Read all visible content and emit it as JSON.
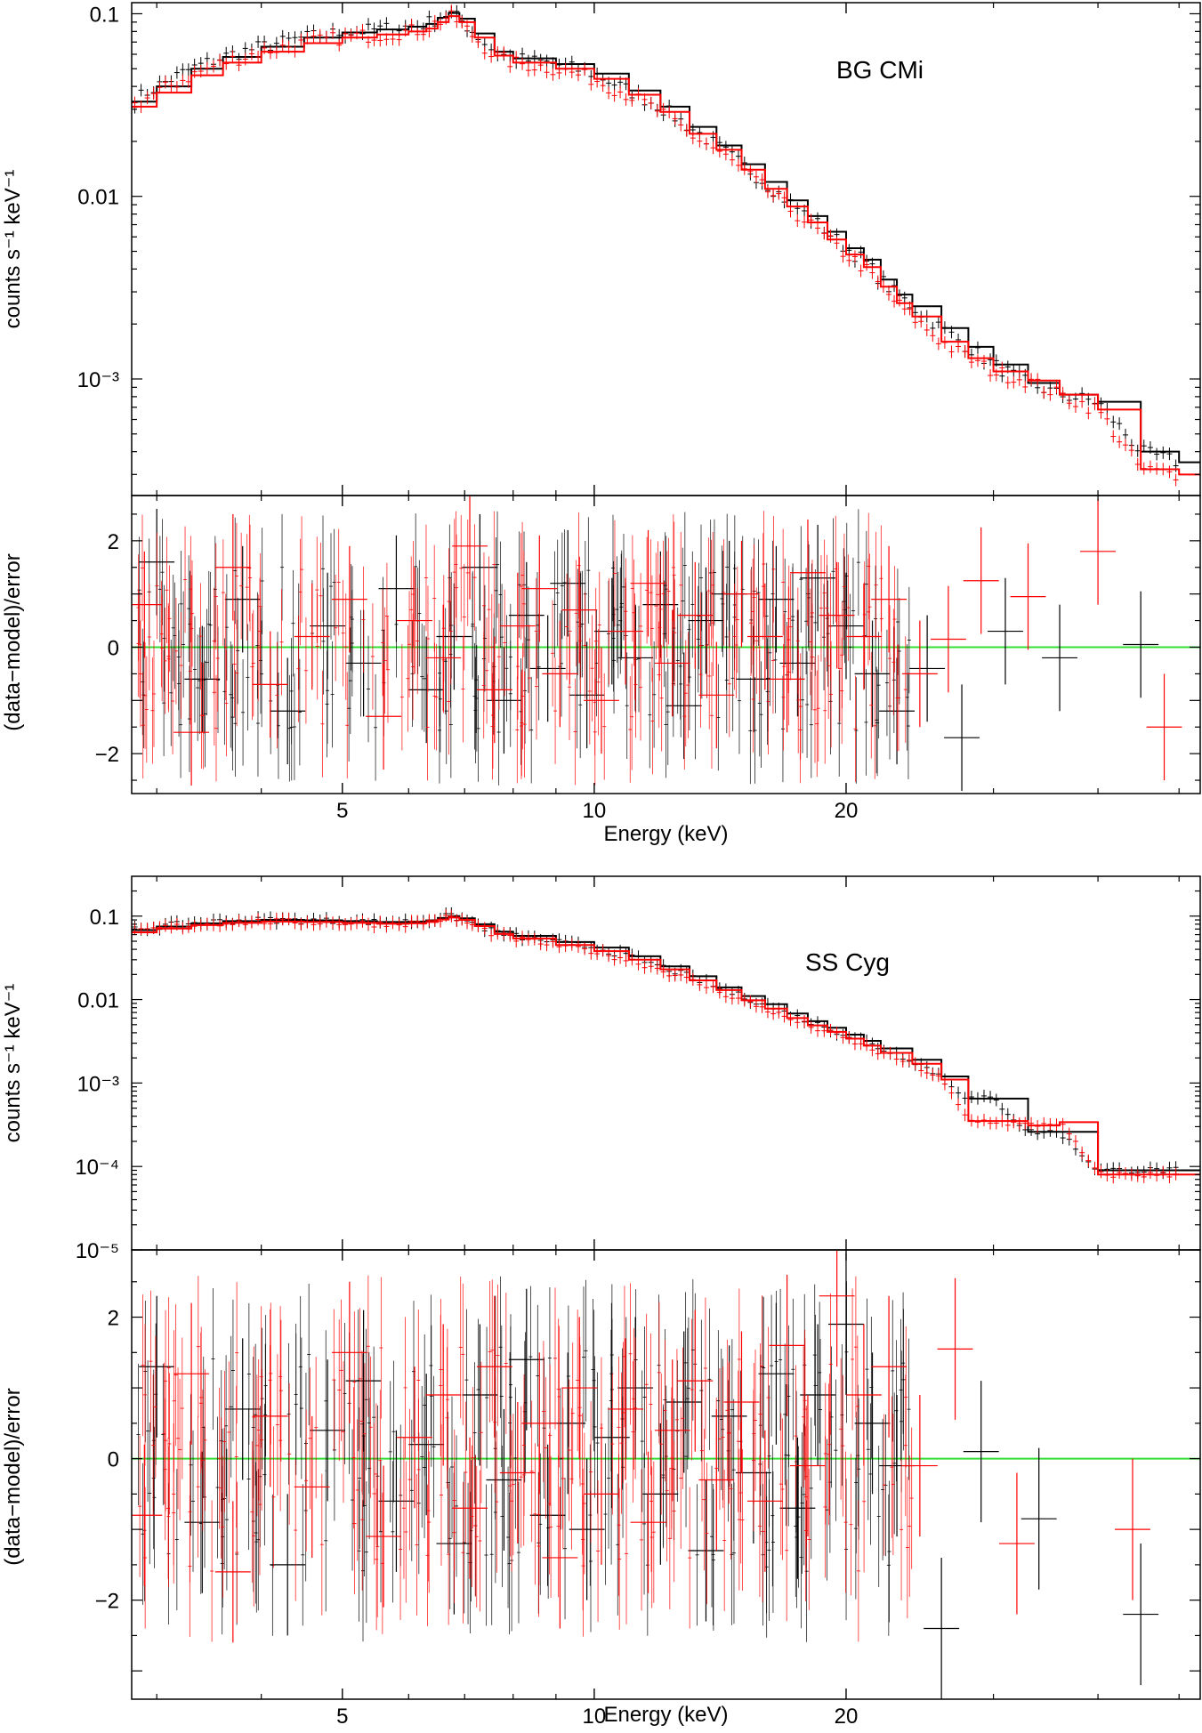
{
  "figure": {
    "x_axis_label": "Energy (keV)",
    "x_range_keV": [
      2.8,
      53
    ],
    "x_ticks": [
      {
        "value": 5,
        "label": "5"
      },
      {
        "value": 10,
        "label": "10"
      },
      {
        "value": 20,
        "label": "20"
      }
    ],
    "colors": {
      "data1": "#000000",
      "data2": "#ff0000",
      "zero_line": "#33dd33",
      "frame": "#000000"
    }
  },
  "chart_data": [
    {
      "type": "line",
      "panel": "BG CMi spectrum",
      "title": "BG CMi",
      "ylabel": "counts s⁻¹ keV⁻¹",
      "yscale": "log",
      "ylim": [
        0.00023,
        0.115
      ],
      "y_ticks": [
        {
          "value": 0.1,
          "label": "0.1"
        },
        {
          "value": 0.01,
          "label": "0.01"
        },
        {
          "value": 0.001,
          "label": "10⁻³"
        }
      ],
      "series": [
        {
          "name": "data set 1 (black)",
          "x": [
            2.8,
            3.0,
            3.3,
            3.6,
            4.0,
            4.5,
            5.0,
            5.5,
            6.0,
            6.3,
            6.5,
            6.7,
            6.9,
            7.2,
            7.6,
            8.0,
            9.0,
            10.0,
            11.0,
            12.0,
            13.0,
            14.0,
            15.0,
            16.0,
            17.0,
            18.0,
            19.0,
            20.0,
            21.0,
            22.0,
            23.0,
            24.0,
            26.0,
            28.0,
            30.0,
            33.0,
            36.0,
            40.0,
            45.0,
            50.0
          ],
          "y": [
            0.033,
            0.04,
            0.05,
            0.058,
            0.066,
            0.074,
            0.079,
            0.082,
            0.085,
            0.088,
            0.095,
            0.101,
            0.094,
            0.078,
            0.062,
            0.057,
            0.053,
            0.047,
            0.038,
            0.031,
            0.024,
            0.019,
            0.015,
            0.012,
            0.0095,
            0.0078,
            0.0064,
            0.0052,
            0.0045,
            0.0035,
            0.0029,
            0.0025,
            0.0019,
            0.0015,
            0.0012,
            0.00095,
            0.00082,
            0.00075,
            0.0004,
            0.00035
          ]
        },
        {
          "name": "data set 2 (red)",
          "x": [
            2.8,
            3.0,
            3.3,
            3.6,
            4.0,
            4.5,
            5.0,
            5.5,
            6.0,
            6.3,
            6.5,
            6.7,
            6.9,
            7.2,
            7.6,
            8.0,
            9.0,
            10.0,
            11.0,
            12.0,
            13.0,
            14.0,
            15.0,
            16.0,
            17.0,
            18.0,
            19.0,
            20.0,
            21.0,
            22.0,
            23.0,
            24.0,
            26.0,
            28.0,
            30.0,
            33.0,
            36.0,
            40.0,
            45.0,
            50.0
          ],
          "y": [
            0.031,
            0.037,
            0.046,
            0.054,
            0.062,
            0.069,
            0.074,
            0.077,
            0.08,
            0.083,
            0.09,
            0.097,
            0.09,
            0.074,
            0.059,
            0.054,
            0.05,
            0.044,
            0.036,
            0.029,
            0.022,
            0.018,
            0.014,
            0.011,
            0.0088,
            0.0072,
            0.0058,
            0.0048,
            0.0041,
            0.0032,
            0.0026,
            0.0022,
            0.0016,
            0.0013,
            0.0011,
            0.00098,
            0.00082,
            0.00068,
            0.00032,
            0.0003
          ]
        }
      ]
    },
    {
      "type": "scatter",
      "panel": "BG CMi residuals",
      "ylabel": "(data−model)/error",
      "ylim": [
        -2.75,
        2.85
      ],
      "y_ticks": [
        {
          "value": 2,
          "label": "2"
        },
        {
          "value": 0,
          "label": "0"
        },
        {
          "value": -2,
          "label": "−2"
        }
      ],
      "reference_line": 0,
      "series": [
        {
          "name": "data set 1 (black)",
          "x": [
            3.0,
            3.4,
            3.8,
            4.3,
            4.8,
            5.3,
            5.8,
            6.3,
            6.8,
            7.3,
            7.8,
            8.3,
            8.8,
            9.3,
            9.8,
            10.5,
            11.2,
            12.0,
            12.8,
            13.6,
            14.5,
            15.5,
            16.5,
            17.5,
            18.5,
            20.0,
            21.5,
            23.0,
            25.0,
            27.5,
            31.0,
            36.0,
            45.0
          ],
          "y": [
            1.6,
            -0.6,
            0.9,
            -1.2,
            0.4,
            -0.3,
            1.1,
            -0.8,
            0.2,
            1.5,
            -1.0,
            0.6,
            -0.4,
            1.2,
            -0.9,
            0.3,
            -0.2,
            0.8,
            -1.1,
            0.5,
            1.0,
            -0.6,
            0.9,
            -0.3,
            1.3,
            0.4,
            -0.5,
            -1.2,
            -0.4,
            -1.7,
            0.3,
            -0.2,
            0.05
          ]
        },
        {
          "name": "data set 2 (red)",
          "x": [
            2.9,
            3.3,
            3.7,
            4.1,
            4.6,
            5.1,
            5.6,
            6.1,
            6.6,
            7.1,
            7.6,
            8.1,
            8.6,
            9.1,
            9.6,
            10.2,
            10.9,
            11.6,
            12.4,
            13.2,
            14.0,
            15.0,
            16.0,
            17.0,
            18.0,
            19.5,
            21.0,
            22.5,
            24.5,
            26.5,
            29.0,
            33.0,
            40.0,
            48.0
          ],
          "y": [
            0.8,
            -1.6,
            1.5,
            -0.7,
            0.2,
            0.9,
            -1.3,
            0.5,
            -0.2,
            1.9,
            -0.8,
            0.4,
            1.1,
            -0.5,
            0.7,
            -1.0,
            0.3,
            1.2,
            -0.3,
            0.6,
            -0.9,
            1.0,
            0.2,
            -0.6,
            1.4,
            0.6,
            0.2,
            0.9,
            -0.5,
            0.15,
            1.25,
            0.95,
            1.8,
            -1.5
          ]
        }
      ]
    },
    {
      "type": "line",
      "panel": "SS Cyg spectrum",
      "title": "SS Cyg",
      "ylabel": "counts s⁻¹ keV⁻¹",
      "yscale": "log",
      "ylim": [
        1e-05,
        0.3
      ],
      "y_ticks": [
        {
          "value": 0.1,
          "label": "0.1"
        },
        {
          "value": 0.01,
          "label": "0.01"
        },
        {
          "value": 0.001,
          "label": "10⁻³"
        },
        {
          "value": 0.0001,
          "label": "10⁻⁴"
        },
        {
          "value": 1e-05,
          "label": "10⁻⁵"
        }
      ],
      "series": [
        {
          "name": "data set 1 (black)",
          "x": [
            2.8,
            3.0,
            3.3,
            3.6,
            4.0,
            4.5,
            5.0,
            5.5,
            6.0,
            6.3,
            6.5,
            6.7,
            6.9,
            7.2,
            7.6,
            8.0,
            9.0,
            10.0,
            11.0,
            12.0,
            13.0,
            14.0,
            15.0,
            16.0,
            17.0,
            18.0,
            19.0,
            20.0,
            21.0,
            22.0,
            24.0,
            26.0,
            28.0,
            30.0,
            33.0,
            36.0,
            40.0,
            45.0,
            50.0
          ],
          "y": [
            0.068,
            0.075,
            0.082,
            0.087,
            0.09,
            0.089,
            0.087,
            0.085,
            0.086,
            0.089,
            0.095,
            0.1,
            0.094,
            0.08,
            0.065,
            0.058,
            0.049,
            0.042,
            0.033,
            0.025,
            0.019,
            0.014,
            0.011,
            0.0088,
            0.0068,
            0.0055,
            0.0046,
            0.0038,
            0.0032,
            0.0026,
            0.0019,
            0.0012,
            0.00065,
            0.00065,
            0.00026,
            0.00026,
            9e-05,
            9e-05,
            9e-05
          ]
        },
        {
          "name": "data set 2 (red)",
          "x": [
            2.8,
            3.0,
            3.3,
            3.6,
            4.0,
            4.5,
            5.0,
            5.5,
            6.0,
            6.3,
            6.5,
            6.7,
            6.9,
            7.2,
            7.6,
            8.0,
            9.0,
            10.0,
            11.0,
            12.0,
            13.0,
            14.0,
            15.0,
            16.0,
            17.0,
            18.0,
            19.0,
            20.0,
            21.0,
            22.0,
            24.0,
            26.0,
            28.0,
            30.0,
            33.0,
            36.0,
            40.0,
            45.0,
            50.0
          ],
          "y": [
            0.064,
            0.071,
            0.078,
            0.083,
            0.086,
            0.085,
            0.083,
            0.081,
            0.082,
            0.085,
            0.091,
            0.096,
            0.09,
            0.076,
            0.061,
            0.054,
            0.045,
            0.038,
            0.03,
            0.023,
            0.017,
            0.013,
            0.0098,
            0.0078,
            0.006,
            0.0049,
            0.0041,
            0.0034,
            0.0028,
            0.0023,
            0.0017,
            0.0011,
            0.00035,
            0.00035,
            0.00031,
            0.00034,
            8e-05,
            8e-05,
            8e-05
          ]
        }
      ]
    },
    {
      "type": "scatter",
      "panel": "SS Cyg residuals",
      "ylabel": "(data−model)/error",
      "ylim": [
        -3.4,
        2.95
      ],
      "y_ticks": [
        {
          "value": 2,
          "label": "2"
        },
        {
          "value": 0,
          "label": "0"
        },
        {
          "value": -2,
          "label": "−2"
        }
      ],
      "reference_line": 0,
      "series": [
        {
          "name": "data set 1 (black)",
          "x": [
            3.0,
            3.4,
            3.8,
            4.3,
            4.8,
            5.3,
            5.8,
            6.3,
            6.8,
            7.3,
            7.8,
            8.3,
            8.8,
            9.3,
            9.8,
            10.5,
            11.2,
            12.0,
            12.8,
            13.6,
            14.5,
            15.5,
            16.5,
            17.5,
            18.5,
            20.0,
            21.5,
            23.0,
            26.0,
            29.0,
            34.0,
            45.0
          ],
          "y": [
            1.3,
            -0.9,
            0.7,
            -1.5,
            0.4,
            1.1,
            -0.6,
            0.2,
            -1.2,
            0.9,
            -0.3,
            1.4,
            -0.8,
            0.5,
            -1.0,
            0.3,
            1.0,
            -0.5,
            0.8,
            -1.3,
            0.6,
            -0.2,
            1.2,
            -0.7,
            0.9,
            1.9,
            0.5,
            -0.1,
            -2.4,
            0.1,
            -0.85,
            -2.2
          ]
        },
        {
          "name": "data set 2 (red)",
          "x": [
            2.9,
            3.3,
            3.7,
            4.1,
            4.6,
            5.1,
            5.6,
            6.1,
            6.6,
            7.1,
            7.6,
            8.1,
            8.6,
            9.1,
            9.6,
            10.2,
            10.9,
            11.6,
            12.4,
            13.2,
            14.0,
            15.0,
            16.0,
            17.0,
            18.0,
            19.5,
            21.0,
            22.5,
            24.5,
            27.0,
            32.0,
            44.0
          ],
          "y": [
            -0.8,
            1.2,
            -1.6,
            0.6,
            -0.4,
            1.5,
            -1.1,
            0.3,
            0.9,
            -0.7,
            1.3,
            -0.2,
            0.5,
            -1.4,
            1.0,
            -0.5,
            0.7,
            -0.9,
            0.4,
            1.1,
            -0.3,
            0.8,
            -0.6,
            1.6,
            -0.1,
            2.3,
            0.9,
            1.3,
            -0.1,
            1.55,
            -1.2,
            -1.0
          ]
        }
      ]
    }
  ]
}
